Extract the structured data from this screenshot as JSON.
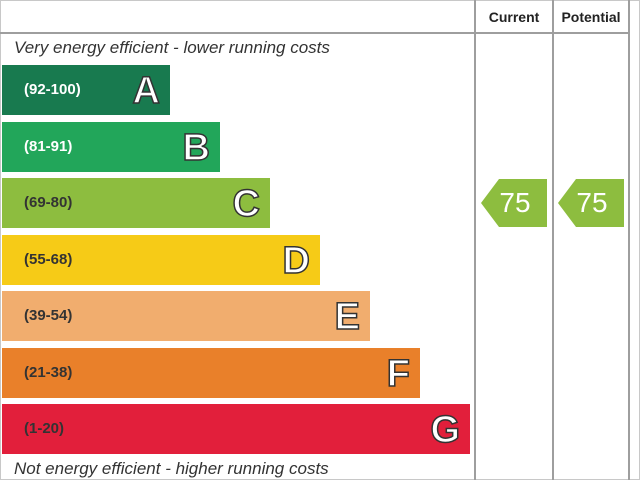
{
  "chart_data": {
    "type": "bar",
    "top_caption": "Very energy efficient - lower running costs",
    "bottom_caption": "Not energy efficient - higher running costs",
    "columns": [
      "Current",
      "Potential"
    ],
    "bands": [
      {
        "range": "(92-100)",
        "letter": "A",
        "color": "#187a4f",
        "text_color": "#ffffff"
      },
      {
        "range": "(81-91)",
        "letter": "B",
        "color": "#22a65a",
        "text_color": "#ffffff"
      },
      {
        "range": "(69-80)",
        "letter": "C",
        "color": "#8dbd3f",
        "text_color": "#333333"
      },
      {
        "range": "(55-68)",
        "letter": "D",
        "color": "#f6cb17",
        "text_color": "#333333"
      },
      {
        "range": "(39-54)",
        "letter": "E",
        "color": "#f1ad6e",
        "text_color": "#333333"
      },
      {
        "range": "(21-38)",
        "letter": "F",
        "color": "#e9802a",
        "text_color": "#333333"
      },
      {
        "range": "(1-20)",
        "letter": "G",
        "color": "#e21f3b",
        "text_color": "#333333"
      }
    ],
    "current": {
      "value": 75,
      "band": "C",
      "color": "#8dbd3f"
    },
    "potential": {
      "value": 75,
      "band": "C",
      "color": "#8dbd3f"
    }
  }
}
